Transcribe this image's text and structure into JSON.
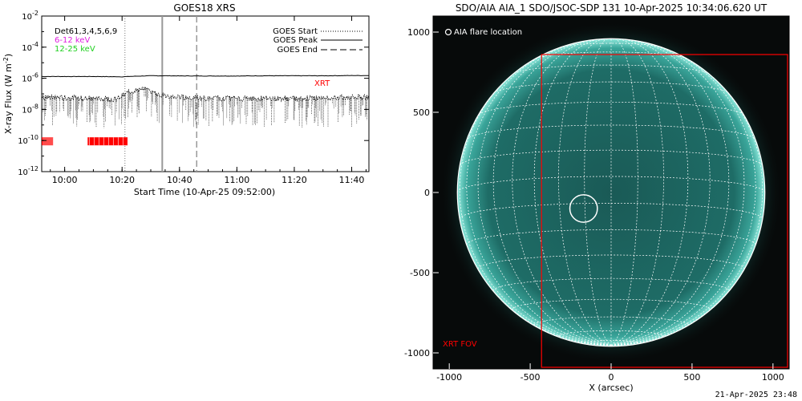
{
  "goes_panel": {
    "title": "GOES18 XRS",
    "ylabel": "X-ray Flux (W m",
    "ylabel_sup": "-2",
    "ylabel_end": ")",
    "xlabel": "Start Time (10-Apr-25 09:52:00)",
    "det_label": "Det61,3,4,5,6,9",
    "band_low": "6-12 keV",
    "band_high": "12-25 keV",
    "legend_start": "GOES Start",
    "legend_peak": "GOES Peak",
    "legend_end": "GOES End",
    "xrt_label": "XRT",
    "colors": {
      "band_low": "#e020e0",
      "band_high": "#20d020",
      "xrt": "#ff0000",
      "axis": "#000000"
    }
  },
  "aia_panel": {
    "title": "SDO/AIA AIA_1 SDO/JSOC-SDP 131 10-Apr-2025 10:34:06.620 UT",
    "flare_label": "AIA flare location",
    "fov_label": "XRT FOV",
    "xlabel": "X (arcsec)",
    "colors": {
      "disk": "#1e6e66",
      "limb": "#7fe0d4",
      "grid": "#ffffff",
      "fov": "#ff0000"
    }
  },
  "footer": {
    "timestamp": "21-Apr-2025 23:48"
  },
  "chart_data": [
    {
      "type": "line",
      "title": "GOES18 XRS",
      "xlabel": "Start Time (10-Apr-25 09:52:00)",
      "ylabel": "X-ray Flux (W m^-2)",
      "yscale": "log",
      "ylim": [
        1e-12,
        0.01
      ],
      "xlim": [
        "09:52",
        "11:46"
      ],
      "x_ticks": [
        "10:00",
        "10:20",
        "10:40",
        "11:00",
        "11:20",
        "11:40"
      ],
      "y_ticks": [
        {
          "base": "10",
          "exp": "-12"
        },
        {
          "base": "10",
          "exp": "-10"
        },
        {
          "base": "10",
          "exp": "-8"
        },
        {
          "base": "10",
          "exp": "-6"
        },
        {
          "base": "10",
          "exp": "-4"
        },
        {
          "base": "10",
          "exp": "-2"
        }
      ],
      "series": [
        {
          "x": [
            "09:52",
            "10:00",
            "10:10",
            "10:20",
            "10:24",
            "10:30",
            "10:34",
            "10:40",
            "10:50",
            "11:00",
            "11:10",
            "11:20",
            "11:30",
            "11:40",
            "11:46"
          ],
          "values": [
            1.3e-06,
            1.3e-06,
            1.3e-06,
            1.25e-06,
            1.35e-06,
            1.45e-06,
            1.45e-06,
            1.42e-06,
            1.4e-06,
            1.4e-06,
            1.45e-06,
            1.45e-06,
            1.45e-06,
            1.5e-06,
            1.5e-06
          ]
        },
        {
          "x": [
            "09:52",
            "10:00",
            "10:10",
            "10:18",
            "10:22",
            "10:26",
            "10:30",
            "10:34",
            "10:40",
            "10:50",
            "11:00",
            "11:10",
            "11:20",
            "11:30",
            "11:40",
            "11:46"
          ],
          "values": [
            6e-08,
            5.5e-08,
            5e-08,
            4.5e-08,
            1.2e-07,
            2e-07,
            1.5e-07,
            8e-08,
            6e-08,
            5e-08,
            5e-08,
            5e-08,
            5e-08,
            5.5e-08,
            6e-08,
            6e-08
          ]
        }
      ],
      "vlines": [
        {
          "label": "GOES Start",
          "x": "10:21",
          "style": "dotted"
        },
        {
          "label": "GOES Peak",
          "x": "10:34",
          "style": "solid"
        },
        {
          "label": "GOES End",
          "x": "10:46",
          "style": "dashed"
        }
      ],
      "xrt_observations": [
        {
          "start": "09:52",
          "end": "09:56"
        },
        {
          "start": "10:08",
          "end": "10:22"
        }
      ],
      "legend_position": "top-right"
    },
    {
      "type": "image",
      "title": "SDO/AIA AIA_1 SDO/JSOC-SDP 131 10-Apr-2025 10:34:06.620 UT",
      "xlabel": "X (arcsec)",
      "xlim": [
        -1100,
        1100
      ],
      "ylim": [
        -1100,
        1100
      ],
      "x_ticks": [
        "-1000",
        "-500",
        "0",
        "500",
        "1000"
      ],
      "y_ticks": [
        "1000",
        "500",
        "0",
        "-500",
        "-1000"
      ],
      "solar_radius": 950,
      "flare_location": {
        "x": -170,
        "y": -100,
        "radius": 85
      },
      "xrt_fov": {
        "x": [
          -430,
          1100
        ],
        "y": [
          -1100,
          860
        ]
      }
    }
  ]
}
